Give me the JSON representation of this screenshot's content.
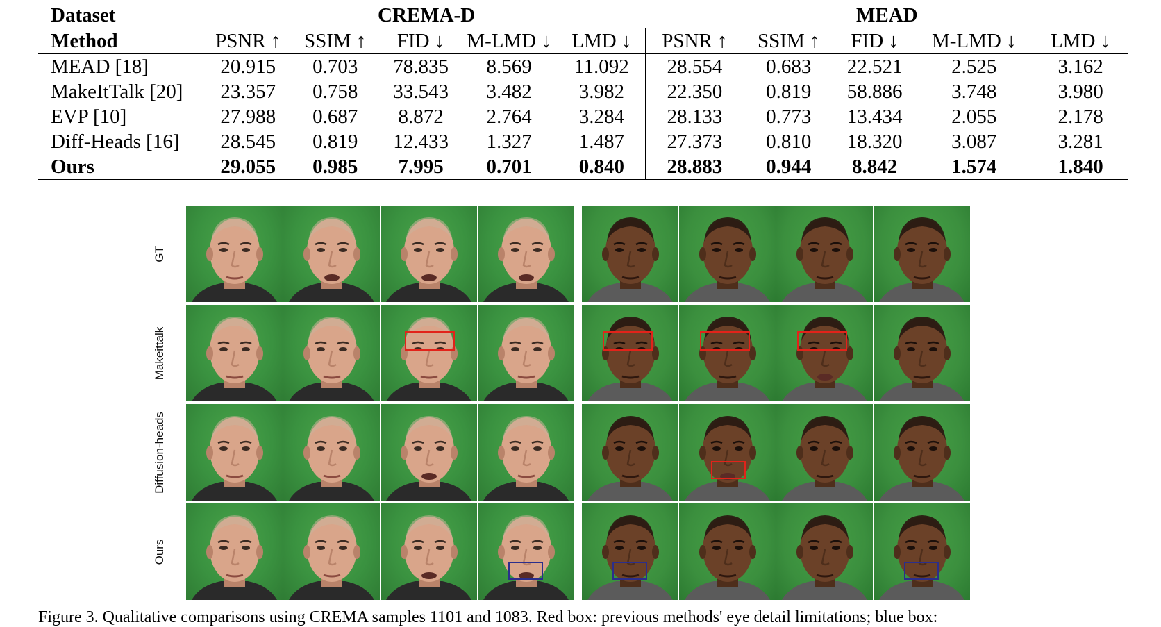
{
  "table": {
    "dataset_label": "Dataset",
    "method_label": "Method",
    "datasets": [
      "CREMA-D",
      "MEAD"
    ],
    "metrics": [
      "PSNR ↑",
      "SSIM ↑",
      "FID ↓",
      "M-LMD ↓",
      "LMD ↓"
    ],
    "rows": [
      {
        "method": "MEAD [18]",
        "crema": [
          "20.915",
          "0.703",
          "78.835",
          "8.569",
          "11.092"
        ],
        "mead": [
          "28.554",
          "0.683",
          "22.521",
          "2.525",
          "3.162"
        ]
      },
      {
        "method": "MakeItTalk [20]",
        "crema": [
          "23.357",
          "0.758",
          "33.543",
          "3.482",
          "3.982"
        ],
        "mead": [
          "22.350",
          "0.819",
          "58.886",
          "3.748",
          "3.980"
        ]
      },
      {
        "method": "EVP [10]",
        "crema": [
          "27.988",
          "0.687",
          "8.872",
          "2.764",
          "3.284"
        ],
        "mead": [
          "28.133",
          "0.773",
          "13.434",
          "2.055",
          "2.178"
        ]
      },
      {
        "method": "Diff-Heads [16]",
        "crema": [
          "28.545",
          "0.819",
          "12.433",
          "1.327",
          "1.487"
        ],
        "mead": [
          "27.373",
          "0.810",
          "18.320",
          "3.087",
          "3.281"
        ]
      },
      {
        "method": "Ours",
        "crema": [
          "29.055",
          "0.985",
          "7.995",
          "0.701",
          "0.840"
        ],
        "mead": [
          "28.883",
          "0.944",
          "8.842",
          "1.574",
          "1.840"
        ],
        "bold": true
      }
    ]
  },
  "figure": {
    "row_labels": [
      "GT",
      "Makeittalk",
      "Diffusion-heads",
      "Ours"
    ],
    "colors": {
      "background": "#3a9240",
      "red_box": "#e2231a",
      "blue_box": "#2b2e8c",
      "skin_left": "#d9a58a",
      "skin_right": "#6b4128"
    }
  },
  "caption": "Figure 3. Qualitative comparisons using CREMA samples 1101 and 1083. Red box: previous methods' eye detail limitations; blue box:"
}
